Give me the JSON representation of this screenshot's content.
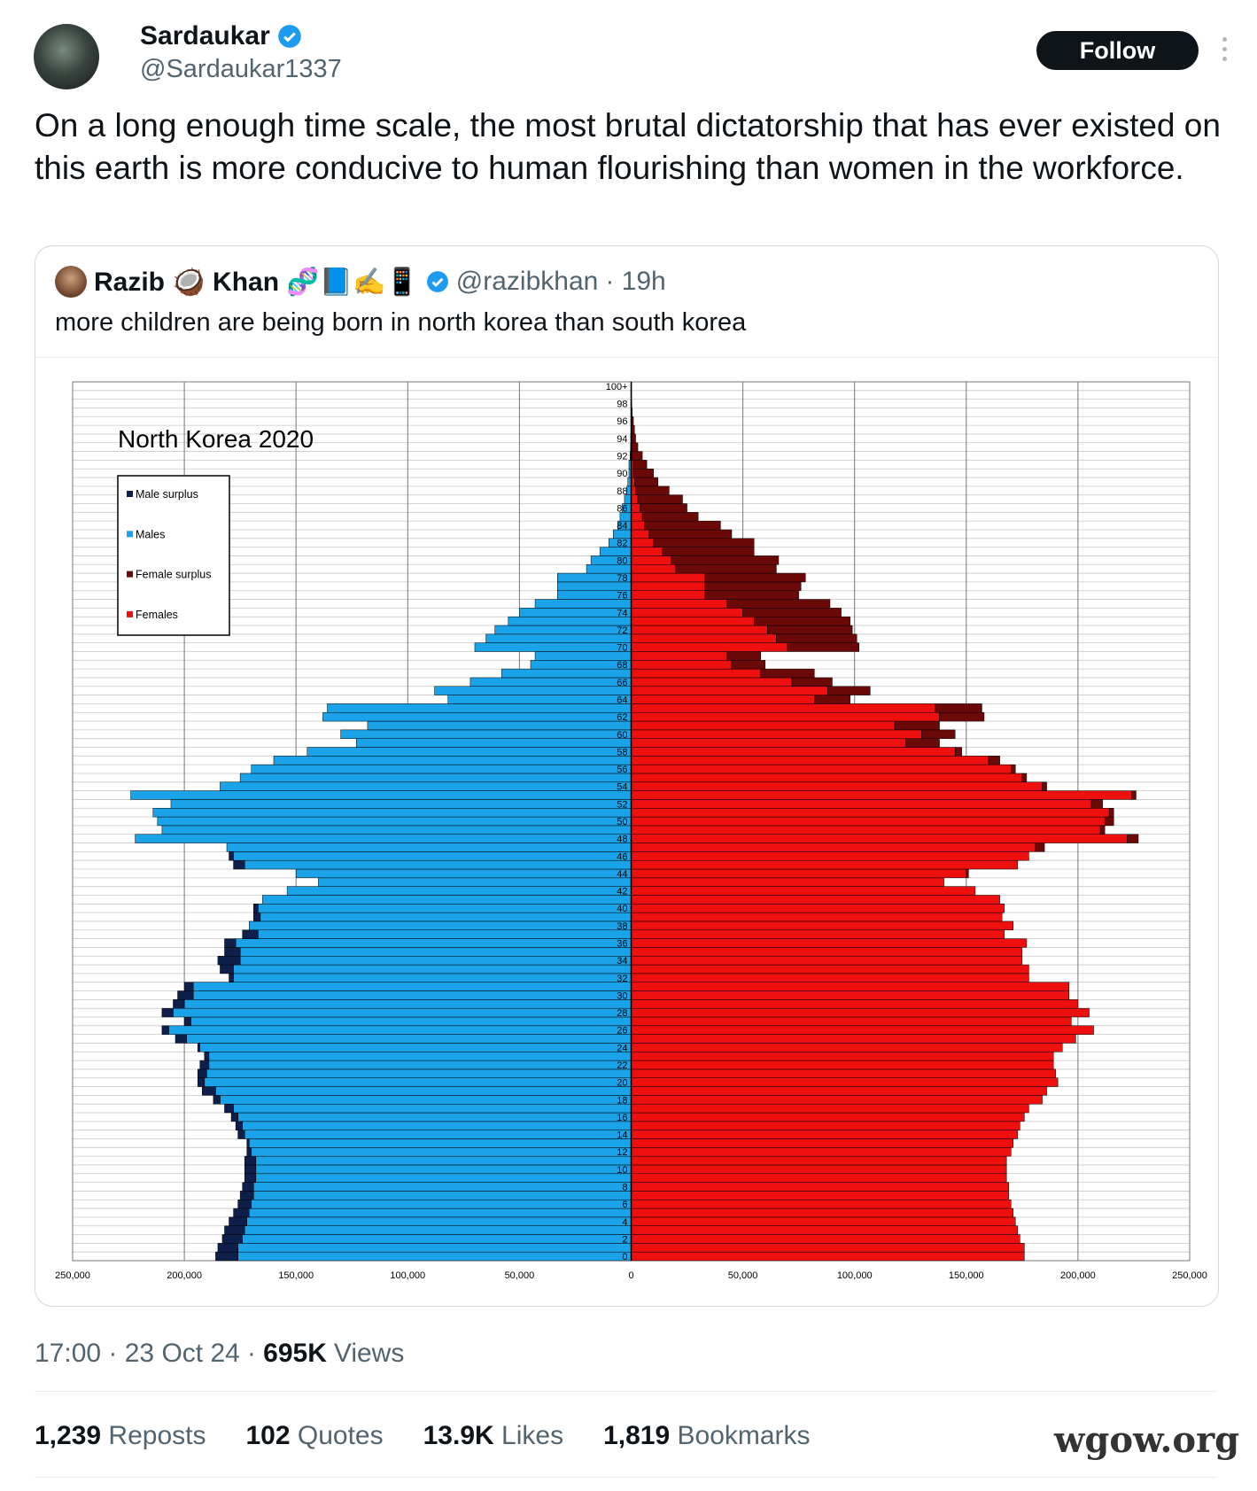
{
  "tweet": {
    "author_name": "Sardaukar",
    "handle": "@Sardaukar1337",
    "follow": "Follow",
    "text": "On a long enough time scale, the most brutal dictatorship that has ever existed on this earth is more conducive to human flourishing than women in the workforce."
  },
  "quote": {
    "author_name": "Razib 🥥 Khan 🧬📘✍️📱",
    "handle": "@razibkhan",
    "time": "19h",
    "text": "more children are being born in north korea than south korea"
  },
  "chart_data": {
    "type": "pyramid",
    "title": "North Korea 2020",
    "legend": "upper left",
    "grid": true,
    "categories": [
      "0",
      null,
      "2",
      null,
      "4",
      null,
      "6",
      null,
      "8",
      null,
      "10",
      null,
      "12",
      null,
      "14",
      null,
      "16",
      null,
      "18",
      null,
      "20",
      null,
      "22",
      null,
      "24",
      null,
      "26",
      null,
      "28",
      null,
      "30",
      null,
      "32",
      null,
      "34",
      null,
      "36",
      null,
      "38",
      null,
      "40",
      null,
      "42",
      null,
      "44",
      null,
      "46",
      null,
      "48",
      null,
      "50",
      null,
      "52",
      null,
      "54",
      null,
      "56",
      null,
      "58",
      null,
      "60",
      null,
      "62",
      null,
      "64",
      null,
      "66",
      null,
      "68",
      null,
      "70",
      null,
      "72",
      null,
      "74",
      null,
      "76",
      null,
      "78",
      null,
      "80",
      null,
      "82",
      null,
      "84",
      null,
      "86",
      null,
      "88",
      null,
      "90",
      null,
      "92",
      null,
      "94",
      null,
      "96",
      null,
      "98",
      null,
      "100+"
    ],
    "series": [
      {
        "name": "Male surplus",
        "color": "#0d1f4a",
        "values": [
          10000,
          9000,
          9000,
          9000,
          8000,
          7000,
          6000,
          6000,
          5000,
          5000,
          5000,
          5000,
          2000,
          1000,
          3000,
          3000,
          3000,
          4000,
          3000,
          6000,
          3000,
          4000,
          4000,
          2000,
          1000,
          5000,
          3000,
          3000,
          5000,
          5000,
          7000,
          4000,
          2000,
          6000,
          10000,
          7000,
          5000,
          7000,
          0,
          3000,
          2000,
          0,
          0,
          0,
          0,
          5000,
          2000,
          0,
          0,
          0,
          0,
          0,
          0,
          0,
          0,
          0,
          0,
          0,
          0,
          0,
          0,
          0,
          0,
          0,
          0,
          0,
          0,
          0,
          0,
          0,
          0,
          0,
          0,
          0,
          0,
          0,
          0,
          0,
          0,
          0,
          0,
          0,
          0,
          0,
          0,
          0,
          0,
          0,
          0,
          0,
          0,
          0,
          0,
          0,
          0,
          0,
          0,
          0,
          0,
          0,
          0
        ]
      },
      {
        "name": "Males",
        "color": "#1aa3e8",
        "values": [
          176000,
          176000,
          174000,
          173000,
          172000,
          171000,
          170000,
          169000,
          169000,
          168000,
          168000,
          168000,
          170000,
          171000,
          173000,
          174000,
          176000,
          178000,
          184000,
          186000,
          191000,
          190000,
          189000,
          189000,
          193000,
          199000,
          207000,
          197000,
          205000,
          200000,
          196000,
          196000,
          178000,
          178000,
          175000,
          175000,
          177000,
          167000,
          171000,
          166000,
          167000,
          165000,
          154000,
          140000,
          150000,
          173000,
          178000,
          181000,
          222000,
          210000,
          212000,
          214000,
          206000,
          224000,
          184000,
          175000,
          170000,
          160000,
          145000,
          123000,
          130000,
          118000,
          138000,
          136000,
          82000,
          88000,
          72000,
          58000,
          45000,
          43000,
          70000,
          65000,
          61000,
          55000,
          50000,
          43000,
          33000,
          33000,
          33000,
          20000,
          18000,
          14000,
          10000,
          8000,
          6000,
          5000,
          4000,
          3000,
          2000,
          1500,
          1000,
          1000,
          500,
          300,
          200,
          100,
          100,
          0,
          0,
          0,
          0
        ]
      },
      {
        "name": "Female surplus",
        "color": "#6b0808",
        "values": [
          0,
          0,
          0,
          0,
          0,
          0,
          0,
          0,
          0,
          0,
          0,
          0,
          0,
          0,
          0,
          0,
          0,
          0,
          0,
          0,
          0,
          0,
          0,
          0,
          0,
          0,
          0,
          0,
          0,
          0,
          0,
          0,
          0,
          0,
          0,
          0,
          0,
          0,
          0,
          0,
          0,
          0,
          0,
          0,
          1000,
          0,
          0,
          4000,
          5000,
          2000,
          4000,
          2000,
          5000,
          2000,
          2000,
          2000,
          2000,
          5000,
          3000,
          15000,
          15000,
          20000,
          20000,
          21000,
          16000,
          19000,
          18000,
          24000,
          15000,
          15000,
          32000,
          36000,
          38000,
          43000,
          44000,
          46000,
          42000,
          43000,
          45000,
          45000,
          48000,
          41000,
          45000,
          37000,
          34000,
          25000,
          21000,
          20000,
          15000,
          10500,
          9000,
          6000,
          4500,
          2700,
          1800,
          1400,
          900,
          500,
          300,
          200,
          200
        ]
      },
      {
        "name": "Females",
        "color": "#ee0f0f",
        "values": [
          176000,
          176000,
          174000,
          173000,
          172000,
          171000,
          170000,
          169000,
          169000,
          168000,
          168000,
          168000,
          170000,
          171000,
          173000,
          174000,
          176000,
          178000,
          184000,
          186000,
          191000,
          190000,
          189000,
          189000,
          193000,
          199000,
          207000,
          197000,
          205000,
          200000,
          196000,
          196000,
          178000,
          178000,
          175000,
          175000,
          177000,
          167000,
          171000,
          166000,
          167000,
          165000,
          154000,
          140000,
          150000,
          173000,
          178000,
          181000,
          222000,
          210000,
          212000,
          214000,
          206000,
          224000,
          184000,
          175000,
          170000,
          160000,
          145000,
          123000,
          130000,
          118000,
          138000,
          136000,
          82000,
          88000,
          72000,
          58000,
          45000,
          43000,
          70000,
          65000,
          61000,
          55000,
          50000,
          43000,
          33000,
          33000,
          33000,
          20000,
          18000,
          14000,
          10000,
          8000,
          6000,
          5000,
          4000,
          3000,
          2000,
          1500,
          1000,
          1000,
          500,
          300,
          200,
          100,
          100,
          0,
          0,
          0,
          0
        ]
      }
    ],
    "xlim": [
      -250000,
      250000
    ],
    "xticks": [
      {
        "value": -250000,
        "label": "250,000"
      },
      {
        "value": -200000,
        "label": "200,000"
      },
      {
        "value": -150000,
        "label": "150,000"
      },
      {
        "value": -100000,
        "label": "100,000"
      },
      {
        "value": -50000,
        "label": "50,000"
      },
      0,
      {
        "value": 50000,
        "label": "50,000"
      },
      {
        "value": 100000,
        "label": "100,000"
      },
      {
        "value": 150000,
        "label": "150,000"
      },
      {
        "value": 200000,
        "label": "200,000"
      },
      {
        "value": 250000,
        "label": "250,000"
      }
    ]
  },
  "meta": {
    "timestamp": "17:00 · 23 Oct 24",
    "views_count": "695K",
    "views_label": "Views"
  },
  "stats": [
    {
      "count": "1,239",
      "label": "Reposts"
    },
    {
      "count": "102",
      "label": "Quotes"
    },
    {
      "count": "13.9K",
      "label": "Likes"
    },
    {
      "count": "1,819",
      "label": "Bookmarks"
    }
  ],
  "watermark": "wgow.org"
}
